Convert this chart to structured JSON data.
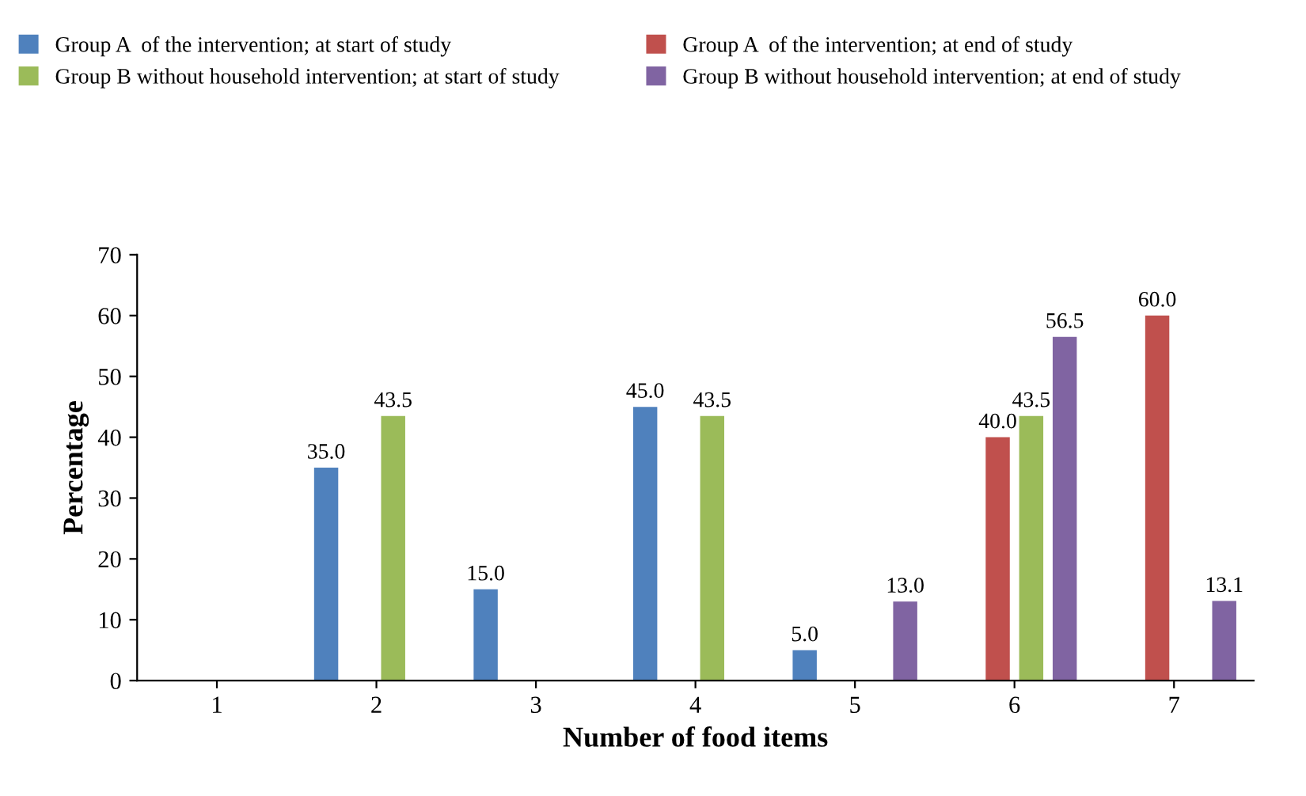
{
  "chart_data": {
    "type": "bar",
    "xlabel": "Number of food items",
    "ylabel": "Percentage",
    "categories": [
      "1",
      "2",
      "3",
      "4",
      "5",
      "6",
      "7"
    ],
    "series": [
      {
        "name": "Group A  of the intervention; at start of study",
        "color": "#4f81bd",
        "values": [
          null,
          35.0,
          15.0,
          45.0,
          5.0,
          null,
          null
        ],
        "value_labels": [
          null,
          "35.0",
          "15.0",
          "45.0",
          "5.0",
          null,
          null
        ]
      },
      {
        "name": "Group A  of the intervention; at end of study",
        "color": "#c0504d",
        "values": [
          null,
          null,
          null,
          null,
          null,
          40.0,
          60.0
        ],
        "value_labels": [
          null,
          null,
          null,
          null,
          null,
          "40.0",
          "60.0"
        ]
      },
      {
        "name": "Group B without household intervention; at start of study",
        "color": "#9bbb59",
        "values": [
          null,
          43.5,
          null,
          43.5,
          null,
          43.5,
          null
        ],
        "value_labels": [
          null,
          "43.5",
          null,
          "43.5",
          null,
          "43.5",
          null
        ]
      },
      {
        "name": "Group B without household intervention; at end of study",
        "color": "#8064a2",
        "values": [
          null,
          null,
          null,
          null,
          13.0,
          56.5,
          13.1
        ],
        "value_labels": [
          null,
          null,
          null,
          null,
          "13.0",
          "56.5",
          "13.1"
        ]
      }
    ],
    "ylim": [
      0,
      70
    ],
    "yticks": [
      0,
      10,
      20,
      30,
      40,
      50,
      60,
      70
    ],
    "grid": false,
    "legend": "top"
  }
}
